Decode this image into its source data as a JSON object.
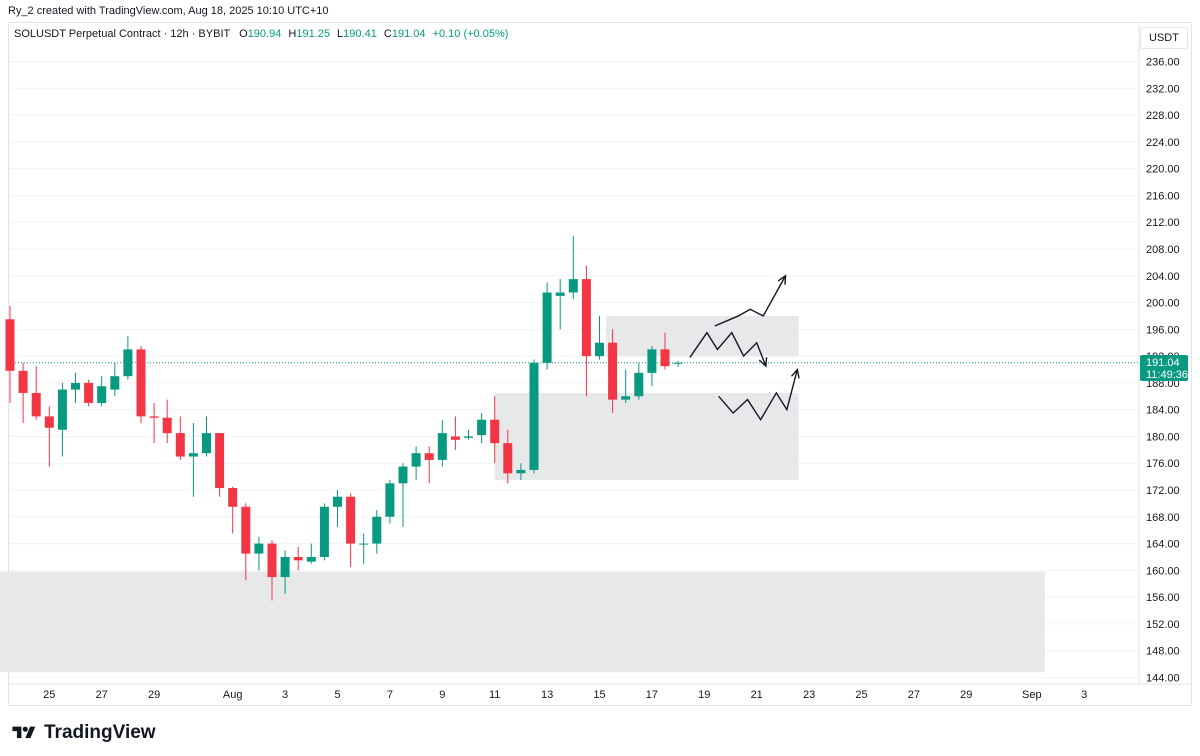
{
  "header": {
    "created_by": "Ry_2 created with TradingView.com, Aug 18, 2025 10:10 UTC+10"
  },
  "legend": {
    "symbol": "SOLUSDT Perpetual Contract · 12h · BYBIT",
    "o_label": "O",
    "o_value": "190.94",
    "h_label": "H",
    "h_value": "191.25",
    "l_label": "L",
    "l_value": "190.41",
    "c_label": "C",
    "c_value": "191.04",
    "change": "+0.10 (+0.05%)"
  },
  "currency": "USDT",
  "price_badge": {
    "price": "191.04",
    "countdown": "11:49:36"
  },
  "footer": {
    "brand": "TradingView"
  },
  "colors": {
    "up": "#089981",
    "down": "#f23645",
    "zone": "#e3e4e6",
    "grid": "#f0f3fa"
  },
  "chart_data": {
    "type": "candlestick",
    "title": "SOLUSDT Perpetual Contract · 12h · BYBIT",
    "ylim": [
      142,
      240
    ],
    "y_ticks": [
      144,
      148,
      152,
      156,
      160,
      164,
      168,
      172,
      176,
      180,
      184,
      188,
      192,
      196,
      200,
      204,
      208,
      212,
      216,
      220,
      224,
      228,
      232,
      236
    ],
    "y_tick_labels": [
      "144.00",
      "148.00",
      "152.00",
      "156.00",
      "160.00",
      "164.00",
      "168.00",
      "172.00",
      "176.00",
      "180.00",
      "184.00",
      "188.00",
      "192.00",
      "196.00",
      "200.00",
      "204.00",
      "208.00",
      "212.00",
      "216.00",
      "220.00",
      "224.00",
      "228.00",
      "232.00",
      "236.00"
    ],
    "x_labels": [
      {
        "label": "25",
        "bar": 3
      },
      {
        "label": "27",
        "bar": 7
      },
      {
        "label": "29",
        "bar": 11
      },
      {
        "label": "Aug",
        "bar": 17
      },
      {
        "label": "3",
        "bar": 21
      },
      {
        "label": "5",
        "bar": 25
      },
      {
        "label": "7",
        "bar": 29
      },
      {
        "label": "9",
        "bar": 33
      },
      {
        "label": "11",
        "bar": 37
      },
      {
        "label": "13",
        "bar": 41
      },
      {
        "label": "15",
        "bar": 45
      },
      {
        "label": "17",
        "bar": 49
      },
      {
        "label": "19",
        "bar": 53
      },
      {
        "label": "21",
        "bar": 57
      },
      {
        "label": "23",
        "bar": 61
      },
      {
        "label": "25",
        "bar": 65
      },
      {
        "label": "27",
        "bar": 69
      },
      {
        "label": "29",
        "bar": 73
      },
      {
        "label": "Sep",
        "bar": 78
      },
      {
        "label": "3",
        "bar": 82
      }
    ],
    "candles": [
      [
        197.5,
        189.8,
        199.5,
        185.0
      ],
      [
        189.8,
        186.5,
        191.0,
        182.0
      ],
      [
        186.5,
        183.0,
        190.5,
        182.5
      ],
      [
        183.0,
        181.3,
        184.5,
        175.5
      ],
      [
        181.0,
        187.0,
        188.0,
        177.0
      ],
      [
        187.0,
        188.0,
        189.5,
        185.0
      ],
      [
        188.0,
        185.0,
        188.5,
        184.5
      ],
      [
        185.0,
        187.5,
        189.0,
        184.5
      ],
      [
        187.0,
        189.0,
        191.0,
        186.0
      ],
      [
        189.0,
        193.0,
        195.0,
        188.5
      ],
      [
        193.0,
        183.0,
        193.5,
        182.0
      ],
      [
        183.0,
        182.8,
        185.0,
        179.0
      ],
      [
        182.8,
        180.5,
        185.5,
        179.0
      ],
      [
        180.5,
        177.0,
        183.0,
        176.5
      ],
      [
        177.0,
        177.5,
        182.0,
        171.0
      ],
      [
        177.5,
        180.5,
        183.0,
        177.0
      ],
      [
        180.5,
        172.3,
        180.5,
        171.0
      ],
      [
        172.3,
        169.5,
        172.5,
        165.5
      ],
      [
        169.5,
        162.5,
        170.0,
        158.5
      ],
      [
        162.5,
        164.0,
        165.0,
        160.0
      ],
      [
        164.0,
        159.0,
        164.5,
        155.5
      ],
      [
        159.0,
        162.0,
        163.0,
        156.5
      ],
      [
        162.0,
        161.5,
        163.5,
        160.0
      ],
      [
        161.3,
        162.0,
        164.0,
        161.0
      ],
      [
        162.0,
        169.5,
        170.0,
        161.5
      ],
      [
        169.5,
        171.0,
        172.0,
        166.5
      ],
      [
        171.0,
        164.0,
        171.5,
        160.5
      ],
      [
        164.0,
        164.0,
        165.5,
        161.0
      ],
      [
        164.0,
        168.0,
        169.0,
        162.5
      ],
      [
        168.0,
        173.0,
        173.5,
        167.0
      ],
      [
        173.0,
        175.5,
        176.0,
        166.5
      ],
      [
        175.5,
        177.5,
        178.5,
        173.5
      ],
      [
        177.5,
        176.5,
        178.5,
        173.0
      ],
      [
        176.5,
        180.5,
        182.5,
        175.5
      ],
      [
        180.0,
        179.5,
        183.0,
        178.0
      ],
      [
        179.8,
        180.0,
        181.0,
        179.5
      ],
      [
        180.2,
        182.5,
        183.5,
        179.0
      ],
      [
        182.5,
        179.0,
        186.0,
        176.0
      ],
      [
        179.0,
        174.5,
        181.0,
        173.0
      ],
      [
        174.5,
        175.0,
        176.0,
        173.5
      ],
      [
        175.0,
        191.0,
        191.5,
        174.5
      ],
      [
        191.0,
        201.5,
        203.0,
        190.0
      ],
      [
        201.0,
        201.5,
        203.5,
        196.0
      ],
      [
        201.5,
        203.5,
        210.0,
        200.5
      ],
      [
        203.5,
        192.0,
        205.5,
        186.0
      ],
      [
        192.0,
        194.0,
        198.0,
        191.5
      ],
      [
        194.0,
        185.5,
        196.0,
        183.5
      ],
      [
        185.5,
        186.0,
        190.0,
        185.0
      ],
      [
        186.0,
        189.5,
        191.0,
        185.5
      ],
      [
        189.5,
        193.0,
        193.5,
        187.5
      ],
      [
        193.0,
        190.5,
        195.5,
        190.0
      ],
      [
        190.9,
        191.0,
        191.3,
        190.4
      ]
    ],
    "zones": [
      {
        "name": "upper-resistance",
        "x_bar": [
          45.5,
          60.2
        ],
        "y": [
          192.0,
          198.0
        ]
      },
      {
        "name": "middle-demand",
        "x_bar": [
          37.0,
          60.2
        ],
        "y": [
          173.5,
          186.5
        ]
      },
      {
        "name": "lower-demand",
        "x_bar": [
          -1.0,
          79.0
        ],
        "y": [
          144.8,
          159.8
        ]
      }
    ],
    "projection_paths": [
      {
        "name": "bullish-path",
        "points": [
          [
            53.8,
            196.5
          ],
          [
            55.6,
            198.0
          ],
          [
            56.5,
            199.0
          ],
          [
            57.5,
            198.0
          ],
          [
            59.2,
            204.0
          ]
        ]
      },
      {
        "name": "range-path",
        "points": [
          [
            51.9,
            191.8
          ],
          [
            53.2,
            195.5
          ],
          [
            54.0,
            193.0
          ],
          [
            55.1,
            195.5
          ],
          [
            56.0,
            192.0
          ],
          [
            57.0,
            194.0
          ],
          [
            57.7,
            190.5
          ]
        ]
      },
      {
        "name": "retest-path",
        "points": [
          [
            54.1,
            186.0
          ],
          [
            55.2,
            183.5
          ],
          [
            56.3,
            185.5
          ],
          [
            57.3,
            182.5
          ],
          [
            58.5,
            186.5
          ],
          [
            59.3,
            184.0
          ],
          [
            60.1,
            190.0
          ]
        ]
      }
    ]
  }
}
